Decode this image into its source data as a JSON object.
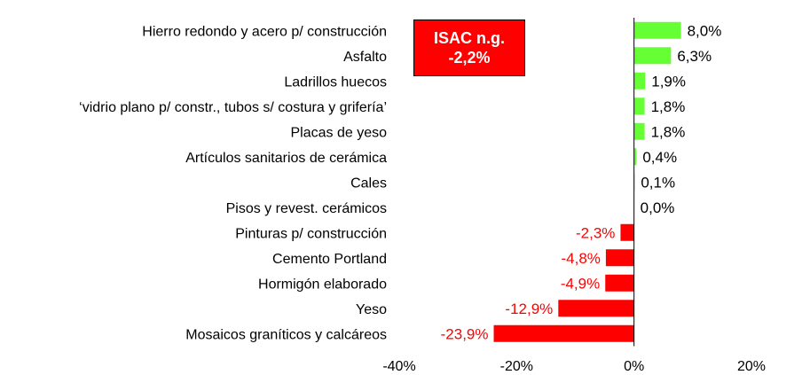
{
  "chart_data": {
    "type": "bar",
    "orientation": "horizontal",
    "title": "",
    "xlabel": "",
    "ylabel": "",
    "xlim": [
      -40,
      20
    ],
    "ticks": [
      -40,
      -20,
      0,
      20
    ],
    "tick_labels": [
      "-40%",
      "-20%",
      "0%",
      "20%"
    ],
    "grid": false,
    "positive_color": "#66ff33",
    "negative_color": "#ff0000",
    "categories": [
      "Hierro redondo y acero p/ construcción",
      "Asfalto",
      "Ladrillos huecos",
      "‘vidrio plano p/ constr., tubos s/ costura y grifería’",
      "Placas de yeso",
      "Artículos sanitarios de cerámica",
      "Cales",
      "Pisos y revest. cerámicos",
      "Pinturas p/ construcción",
      "Cemento Portland",
      "Hormigón elaborado",
      "Yeso",
      "Mosaicos graníticos y calcáreos"
    ],
    "values": [
      8.0,
      6.3,
      1.9,
      1.8,
      1.8,
      0.4,
      0.1,
      0.0,
      -2.3,
      -4.8,
      -4.9,
      -12.9,
      -23.9
    ],
    "value_labels": [
      "8,0%",
      "6,3%",
      "1,9%",
      "1,8%",
      "1,8%",
      "0,4%",
      "0,1%",
      "0,0%",
      "-2,3%",
      "-4,8%",
      "-4,9%",
      "-12,9%",
      "-23,9%"
    ],
    "annotation": {
      "line1": "ISAC n.g.",
      "line2": "-2,2%",
      "background": "#ff0000"
    }
  }
}
